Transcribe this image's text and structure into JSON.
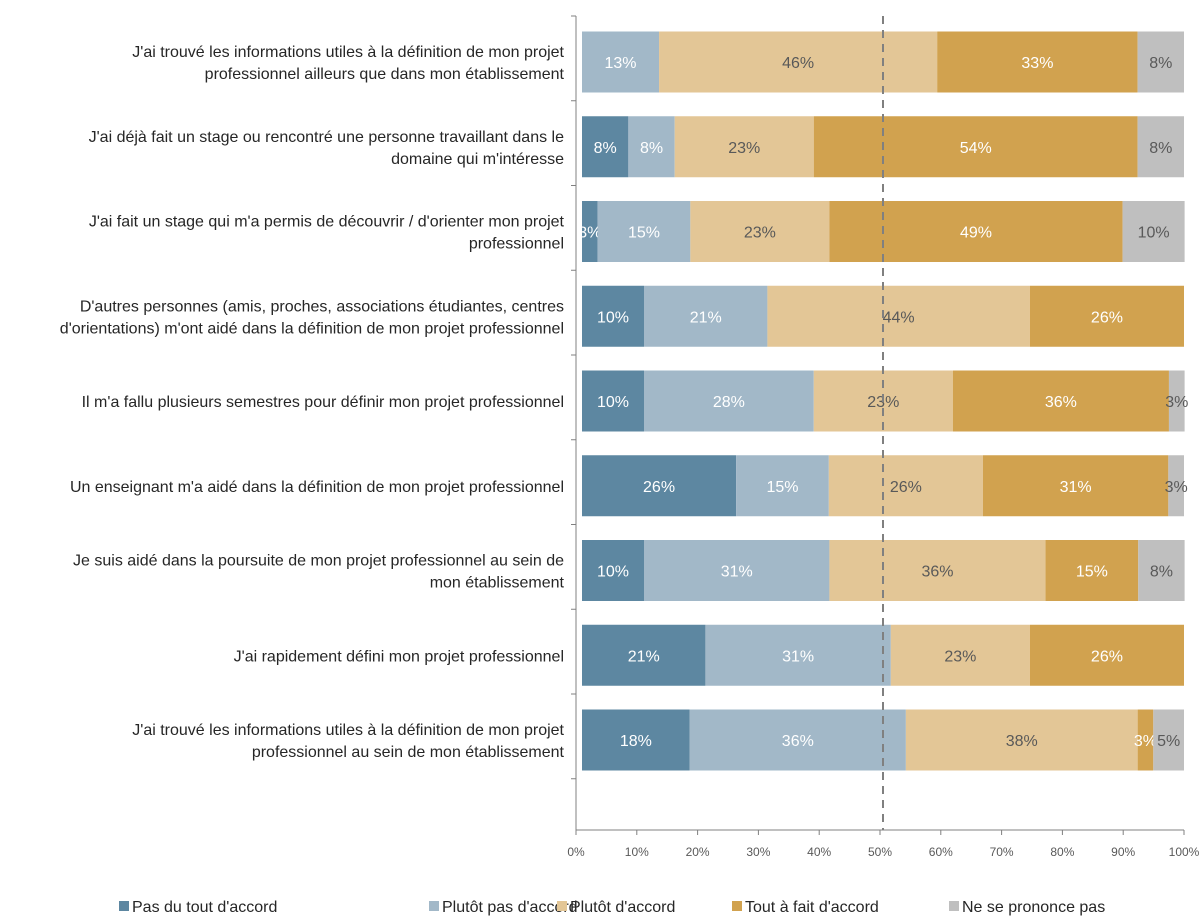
{
  "chart_data": {
    "type": "bar",
    "orientation": "horizontal",
    "stacked": true,
    "percent": true,
    "categories": [
      [
        "J'ai trouvé les informations utiles à la définition de mon projet",
        "professionnel ailleurs que dans mon établissement"
      ],
      [
        "J'ai déjà fait un stage ou rencontré une personne travaillant dans le",
        "domaine qui m'intéresse"
      ],
      [
        "J'ai fait un stage qui m'a permis de découvrir / d'orienter mon projet",
        "professionnel"
      ],
      [
        "D'autres personnes (amis, proches, associations étudiantes, centres",
        "d'orientations) m'ont aidé dans la définition de mon projet professionnel"
      ],
      [
        "Il m'a fallu plusieurs semestres pour définir mon projet professionnel"
      ],
      [
        "Un enseignant m'a aidé dans la définition de mon projet professionnel"
      ],
      [
        "Je suis aidé dans la poursuite de mon projet professionnel au sein de",
        "mon établissement"
      ],
      [
        "J'ai rapidement défini mon projet professionnel"
      ],
      [
        "J'ai trouvé les informations utiles à la définition de mon projet",
        "professionnel au sein de mon établissement"
      ]
    ],
    "series": [
      {
        "name": "Pas du tout d'accord",
        "color": "#5d87a1",
        "label_color": "#ffffff",
        "values": [
          0,
          7.7,
          2.6,
          10.3,
          10.3,
          25.6,
          10.3,
          20.5,
          17.9
        ],
        "labels": [
          "",
          "8%",
          "3%",
          "10%",
          "10%",
          "26%",
          "10%",
          "21%",
          "18%"
        ]
      },
      {
        "name": "Plutôt pas d'accord",
        "color": "#a2b8c8",
        "label_color": "#ffffff",
        "values": [
          12.8,
          7.7,
          15.4,
          20.5,
          28.2,
          15.4,
          30.8,
          30.8,
          35.9
        ],
        "labels": [
          "13%",
          "8%",
          "15%",
          "21%",
          "28%",
          "15%",
          "31%",
          "31%",
          "36%"
        ]
      },
      {
        "name": "Plutôt d'accord",
        "color": "#e3c696",
        "label_color": "#595959",
        "values": [
          46.2,
          23.1,
          23.1,
          43.6,
          23.1,
          25.6,
          35.9,
          23.1,
          38.5
        ],
        "labels": [
          "46%",
          "23%",
          "23%",
          "44%",
          "23%",
          "26%",
          "36%",
          "23%",
          "38%"
        ]
      },
      {
        "name": "Tout à fait d'accord",
        "color": "#d1a24f",
        "label_color": "#ffffff",
        "values": [
          33.3,
          53.8,
          48.7,
          25.6,
          35.9,
          30.8,
          15.4,
          25.6,
          2.6
        ],
        "labels": [
          "33%",
          "54%",
          "49%",
          "26%",
          "36%",
          "31%",
          "15%",
          "26%",
          "3%"
        ]
      },
      {
        "name": "Ne se prononce pas",
        "color": "#bfbfbf",
        "label_color": "#595959",
        "values": [
          7.7,
          7.7,
          10.3,
          0,
          2.6,
          2.6,
          7.7,
          0,
          5.1
        ],
        "labels": [
          "8%",
          "8%",
          "10%",
          "",
          "3%",
          "3%",
          "8%",
          "",
          "5%"
        ]
      }
    ],
    "xlim": [
      0,
      100
    ],
    "x_ticks": [
      "0%",
      "10%",
      "20%",
      "30%",
      "40%",
      "50%",
      "60%",
      "70%",
      "80%",
      "90%",
      "100%"
    ],
    "reference_line": {
      "x": 50,
      "style": "dashed",
      "color": "#808080"
    },
    "grid": false,
    "legend_position": "bottom"
  }
}
